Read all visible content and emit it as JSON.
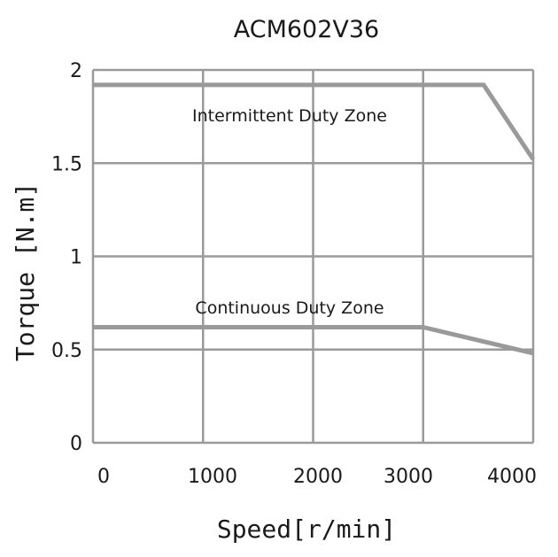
{
  "chart_data": {
    "type": "line",
    "title": "ACM602V36",
    "xlabel": "Speed[r/min]",
    "ylabel": "Torque [N.m]",
    "xlim": [
      0,
      4000
    ],
    "ylim": [
      0,
      2
    ],
    "x_ticks": [
      "0",
      "1000",
      "2000",
      "3000",
      "4000"
    ],
    "y_ticks": [
      "0",
      "0.5",
      "1",
      "1.5",
      "2"
    ],
    "grid": true,
    "line_color": "#9a9a9a",
    "series": [
      {
        "label": "Intermittent Duty Zone",
        "x": [
          0,
          3550,
          4000
        ],
        "y": [
          1.92,
          1.92,
          1.52
        ]
      },
      {
        "label": "Continuous Duty Zone",
        "x": [
          0,
          3000,
          4000
        ],
        "y": [
          0.62,
          0.62,
          0.48
        ]
      }
    ]
  }
}
